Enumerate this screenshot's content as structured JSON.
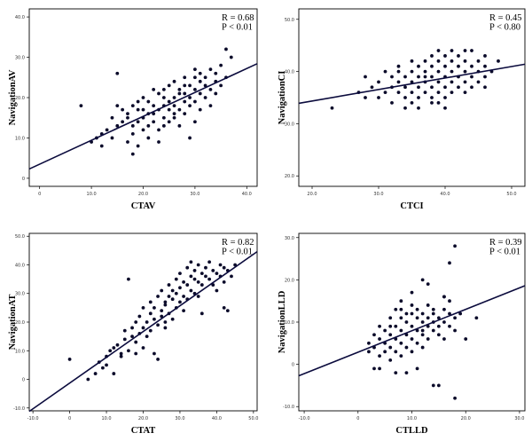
{
  "chart_data": [
    {
      "type": "scatter",
      "xlabel": "CTAV",
      "ylabel": "NavigationAV",
      "annotations": [
        "R = 0.68",
        "P < 0.01"
      ],
      "xlim": [
        -2,
        42
      ],
      "ylim": [
        -2,
        42
      ],
      "xticks": [
        0,
        10,
        20,
        30,
        40
      ],
      "yticks": [
        0,
        10,
        20,
        30,
        40
      ],
      "xtick_labels": [
        "0",
        "10.0",
        "20.0",
        "30.0",
        "40.0"
      ],
      "ytick_labels": [
        "0",
        "10.0",
        "20.0",
        "30.0",
        "40.0"
      ],
      "fit_line": [
        [
          -2,
          2.3
        ],
        [
          42,
          28.4
        ]
      ],
      "points": [
        [
          8,
          18
        ],
        [
          10,
          9
        ],
        [
          11,
          10
        ],
        [
          12,
          11
        ],
        [
          12,
          8
        ],
        [
          13,
          12
        ],
        [
          14,
          10
        ],
        [
          14,
          15
        ],
        [
          15,
          26
        ],
        [
          15,
          18
        ],
        [
          15,
          13
        ],
        [
          16,
          14
        ],
        [
          16,
          17
        ],
        [
          17,
          16
        ],
        [
          17,
          9
        ],
        [
          18,
          18
        ],
        [
          18,
          13
        ],
        [
          18,
          6
        ],
        [
          18,
          11
        ],
        [
          19,
          14
        ],
        [
          19,
          19
        ],
        [
          19,
          8
        ],
        [
          20,
          12
        ],
        [
          20,
          17
        ],
        [
          20,
          20
        ],
        [
          20,
          15
        ],
        [
          21,
          10
        ],
        [
          21,
          13
        ],
        [
          21,
          19
        ],
        [
          22,
          18
        ],
        [
          22,
          14
        ],
        [
          22,
          22
        ],
        [
          22,
          16
        ],
        [
          23,
          21
        ],
        [
          23,
          17
        ],
        [
          23,
          12
        ],
        [
          23,
          9
        ],
        [
          24,
          15
        ],
        [
          24,
          18
        ],
        [
          24,
          20
        ],
        [
          24,
          22
        ],
        [
          25,
          19
        ],
        [
          25,
          14
        ],
        [
          25,
          17
        ],
        [
          25,
          23
        ],
        [
          26,
          16
        ],
        [
          26,
          20
        ],
        [
          26,
          24
        ],
        [
          26,
          18
        ],
        [
          27,
          13
        ],
        [
          27,
          21
        ],
        [
          27,
          17
        ],
        [
          27,
          22
        ],
        [
          28,
          25
        ],
        [
          28,
          19
        ],
        [
          28,
          16
        ],
        [
          28,
          21
        ],
        [
          29,
          23
        ],
        [
          29,
          20
        ],
        [
          29,
          10
        ],
        [
          29,
          18
        ],
        [
          30,
          22
        ],
        [
          30,
          25
        ],
        [
          30,
          19
        ],
        [
          30,
          14
        ],
        [
          31,
          24
        ],
        [
          31,
          21
        ],
        [
          31,
          17
        ],
        [
          31,
          26
        ],
        [
          32,
          23
        ],
        [
          32,
          20
        ],
        [
          32,
          25
        ],
        [
          33,
          27
        ],
        [
          33,
          22
        ],
        [
          33,
          18
        ],
        [
          34,
          24
        ],
        [
          34,
          26
        ],
        [
          34,
          21
        ],
        [
          35,
          28
        ],
        [
          35,
          23
        ],
        [
          36,
          32
        ],
        [
          36,
          25
        ],
        [
          37,
          30
        ],
        [
          17,
          15
        ],
        [
          19,
          17
        ],
        [
          21,
          16
        ],
        [
          24,
          13
        ],
        [
          26,
          15
        ],
        [
          28,
          23
        ],
        [
          30,
          27
        ]
      ]
    },
    {
      "type": "scatter",
      "xlabel": "CTCI",
      "ylabel": "NavigationCI",
      "annotations": [
        "R = 0.45",
        "P < 0.80"
      ],
      "xlim": [
        18,
        52
      ],
      "ylim": [
        18,
        52
      ],
      "xticks": [
        20,
        30,
        40,
        50
      ],
      "yticks": [
        20,
        30,
        40,
        50
      ],
      "xtick_labels": [
        "20.0",
        "30.0",
        "40.0",
        "50.0"
      ],
      "ytick_labels": [
        "20.0",
        "30.0",
        "40.0",
        "50.0"
      ],
      "fit_line": [
        [
          18,
          33.9
        ],
        [
          52,
          41.4
        ]
      ],
      "points": [
        [
          23,
          33
        ],
        [
          27,
          36
        ],
        [
          28,
          39
        ],
        [
          28,
          35
        ],
        [
          29,
          37
        ],
        [
          30,
          38
        ],
        [
          30,
          35
        ],
        [
          31,
          36
        ],
        [
          31,
          40
        ],
        [
          32,
          37
        ],
        [
          32,
          39
        ],
        [
          32,
          34
        ],
        [
          33,
          38
        ],
        [
          33,
          36
        ],
        [
          33,
          41
        ],
        [
          34,
          37
        ],
        [
          34,
          39
        ],
        [
          34,
          35
        ],
        [
          34,
          33
        ],
        [
          35,
          38
        ],
        [
          35,
          40
        ],
        [
          35,
          36
        ],
        [
          35,
          34
        ],
        [
          36,
          39
        ],
        [
          36,
          37
        ],
        [
          36,
          41
        ],
        [
          36,
          35
        ],
        [
          37,
          38
        ],
        [
          37,
          40
        ],
        [
          37,
          36
        ],
        [
          37,
          42
        ],
        [
          38,
          39
        ],
        [
          38,
          37
        ],
        [
          38,
          41
        ],
        [
          38,
          35
        ],
        [
          38,
          43
        ],
        [
          39,
          38
        ],
        [
          39,
          40
        ],
        [
          39,
          36
        ],
        [
          39,
          42
        ],
        [
          39,
          34
        ],
        [
          40,
          39
        ],
        [
          40,
          41
        ],
        [
          40,
          37
        ],
        [
          40,
          43
        ],
        [
          40,
          35
        ],
        [
          41,
          38
        ],
        [
          41,
          40
        ],
        [
          41,
          42
        ],
        [
          41,
          36
        ],
        [
          42,
          39
        ],
        [
          42,
          41
        ],
        [
          42,
          37
        ],
        [
          42,
          43
        ],
        [
          43,
          38
        ],
        [
          43,
          40
        ],
        [
          43,
          36
        ],
        [
          43,
          42
        ],
        [
          44,
          39
        ],
        [
          44,
          41
        ],
        [
          44,
          37
        ],
        [
          45,
          40
        ],
        [
          45,
          38
        ],
        [
          45,
          42
        ],
        [
          46,
          39
        ],
        [
          46,
          41
        ],
        [
          46,
          37
        ],
        [
          46,
          43
        ],
        [
          47,
          40
        ],
        [
          48,
          42
        ],
        [
          36,
          33
        ],
        [
          38,
          34
        ],
        [
          40,
          33
        ],
        [
          44,
          44
        ],
        [
          33,
          40
        ],
        [
          35,
          42
        ],
        [
          37,
          39
        ],
        [
          39,
          44
        ],
        [
          41,
          44
        ],
        [
          43,
          44
        ]
      ]
    },
    {
      "type": "scatter",
      "xlabel": "CTAT",
      "ylabel": "NavigationAT",
      "annotations": [
        "R = 0.82",
        "P < 0.01"
      ],
      "xlim": [
        -11,
        51
      ],
      "ylim": [
        -11,
        51
      ],
      "xticks": [
        -10,
        0,
        10,
        20,
        30,
        40,
        50
      ],
      "yticks": [
        -10,
        0,
        10,
        20,
        30,
        40,
        50
      ],
      "xtick_labels": [
        "-10.0",
        "0",
        "10.0",
        "20.0",
        "30.0",
        "40.0",
        "50.0"
      ],
      "ytick_labels": [
        "-10.0",
        "0",
        "10.0",
        "20.0",
        "30.0",
        "40.0",
        "50.0"
      ],
      "fit_line": [
        [
          -11,
          -11.2
        ],
        [
          51,
          44.6
        ]
      ],
      "points": [
        [
          0,
          7
        ],
        [
          5,
          0
        ],
        [
          7,
          2
        ],
        [
          8,
          6
        ],
        [
          9,
          4
        ],
        [
          10,
          5
        ],
        [
          10,
          8
        ],
        [
          11,
          10
        ],
        [
          12,
          2
        ],
        [
          12,
          11
        ],
        [
          13,
          12
        ],
        [
          14,
          8
        ],
        [
          15,
          14
        ],
        [
          15,
          17
        ],
        [
          16,
          35
        ],
        [
          16,
          10
        ],
        [
          17,
          15
        ],
        [
          17,
          18
        ],
        [
          18,
          13
        ],
        [
          18,
          20
        ],
        [
          19,
          16
        ],
        [
          19,
          22
        ],
        [
          20,
          18
        ],
        [
          20,
          25
        ],
        [
          20,
          11
        ],
        [
          21,
          20
        ],
        [
          21,
          15
        ],
        [
          22,
          23
        ],
        [
          22,
          27
        ],
        [
          22,
          17
        ],
        [
          23,
          9
        ],
        [
          23,
          21
        ],
        [
          23,
          25
        ],
        [
          24,
          19
        ],
        [
          24,
          29
        ],
        [
          24,
          7
        ],
        [
          25,
          24
        ],
        [
          25,
          22
        ],
        [
          25,
          31
        ],
        [
          26,
          27
        ],
        [
          26,
          26
        ],
        [
          26,
          20
        ],
        [
          27,
          29
        ],
        [
          27,
          23
        ],
        [
          27,
          33
        ],
        [
          28,
          28
        ],
        [
          28,
          21
        ],
        [
          28,
          31
        ],
        [
          29,
          30
        ],
        [
          29,
          35
        ],
        [
          29,
          25
        ],
        [
          30,
          32
        ],
        [
          30,
          27
        ],
        [
          30,
          37
        ],
        [
          31,
          29
        ],
        [
          31,
          34
        ],
        [
          31,
          24
        ],
        [
          32,
          33
        ],
        [
          32,
          39
        ],
        [
          32,
          28
        ],
        [
          33,
          31
        ],
        [
          33,
          36
        ],
        [
          33,
          41
        ],
        [
          34,
          35
        ],
        [
          34,
          30
        ],
        [
          34,
          38
        ],
        [
          35,
          34
        ],
        [
          35,
          40
        ],
        [
          35,
          29
        ],
        [
          36,
          37
        ],
        [
          36,
          33
        ],
        [
          36,
          23
        ],
        [
          37,
          36
        ],
        [
          37,
          39
        ],
        [
          38,
          35
        ],
        [
          38,
          41
        ],
        [
          39,
          38
        ],
        [
          39,
          33
        ],
        [
          40,
          37
        ],
        [
          40,
          31
        ],
        [
          41,
          36
        ],
        [
          41,
          40
        ],
        [
          42,
          25
        ],
        [
          42,
          34
        ],
        [
          42,
          39
        ],
        [
          43,
          24
        ],
        [
          43,
          38
        ],
        [
          44,
          36
        ],
        [
          45,
          40
        ],
        [
          14,
          9
        ],
        [
          18,
          9
        ],
        [
          26,
          18
        ]
      ]
    },
    {
      "type": "scatter",
      "xlabel": "CTLLD",
      "ylabel": "NavigationLLD",
      "annotations": [
        "R = 0.39",
        "P < 0.01"
      ],
      "xlim": [
        -11,
        31
      ],
      "ylim": [
        -11,
        31
      ],
      "xticks": [
        -10,
        0,
        10,
        20,
        30
      ],
      "yticks": [
        -10,
        0,
        10,
        20,
        30
      ],
      "xtick_labels": [
        "-10.0",
        "0",
        "10.0",
        "20.0",
        "30.0"
      ],
      "ytick_labels": [
        "-10.0",
        "0",
        "10.0",
        "20.0",
        "30.0"
      ],
      "fit_line": [
        [
          -11,
          -2.7
        ],
        [
          31,
          18.6
        ]
      ],
      "points": [
        [
          2,
          3
        ],
        [
          2,
          5
        ],
        [
          3,
          -1
        ],
        [
          3,
          4
        ],
        [
          3,
          7
        ],
        [
          4,
          6
        ],
        [
          4,
          2
        ],
        [
          4,
          9
        ],
        [
          4,
          -1
        ],
        [
          5,
          5
        ],
        [
          5,
          3
        ],
        [
          5,
          8
        ],
        [
          6,
          7
        ],
        [
          6,
          4
        ],
        [
          6,
          11
        ],
        [
          6,
          1
        ],
        [
          7,
          6
        ],
        [
          7,
          9
        ],
        [
          7,
          3
        ],
        [
          7,
          13
        ],
        [
          7,
          -2
        ],
        [
          8,
          8
        ],
        [
          8,
          5
        ],
        [
          8,
          11
        ],
        [
          8,
          2
        ],
        [
          8,
          15
        ],
        [
          9,
          7
        ],
        [
          9,
          10
        ],
        [
          9,
          4
        ],
        [
          9,
          12
        ],
        [
          9,
          -2
        ],
        [
          10,
          9
        ],
        [
          10,
          6
        ],
        [
          10,
          12
        ],
        [
          10,
          3
        ],
        [
          10,
          14
        ],
        [
          11,
          8
        ],
        [
          11,
          11
        ],
        [
          11,
          5
        ],
        [
          11,
          13
        ],
        [
          11,
          -1
        ],
        [
          12,
          10
        ],
        [
          12,
          7
        ],
        [
          12,
          20
        ],
        [
          12,
          12
        ],
        [
          12,
          4
        ],
        [
          13,
          9
        ],
        [
          13,
          11
        ],
        [
          13,
          19
        ],
        [
          13,
          6
        ],
        [
          13,
          14
        ],
        [
          14,
          10
        ],
        [
          14,
          8
        ],
        [
          14,
          12
        ],
        [
          14,
          -5
        ],
        [
          15,
          9
        ],
        [
          15,
          11
        ],
        [
          15,
          -5
        ],
        [
          15,
          7
        ],
        [
          16,
          13
        ],
        [
          16,
          10
        ],
        [
          16,
          16
        ],
        [
          16,
          6
        ],
        [
          17,
          12
        ],
        [
          17,
          9
        ],
        [
          17,
          15
        ],
        [
          17,
          24
        ],
        [
          18,
          28
        ],
        [
          18,
          8
        ],
        [
          18,
          -8
        ],
        [
          18,
          11
        ],
        [
          19,
          12
        ],
        [
          20,
          6
        ],
        [
          22,
          11
        ],
        [
          16,
          16
        ],
        [
          10,
          17
        ],
        [
          14,
          13
        ],
        [
          12,
          8
        ],
        [
          6,
          9
        ],
        [
          8,
          13
        ]
      ]
    }
  ]
}
